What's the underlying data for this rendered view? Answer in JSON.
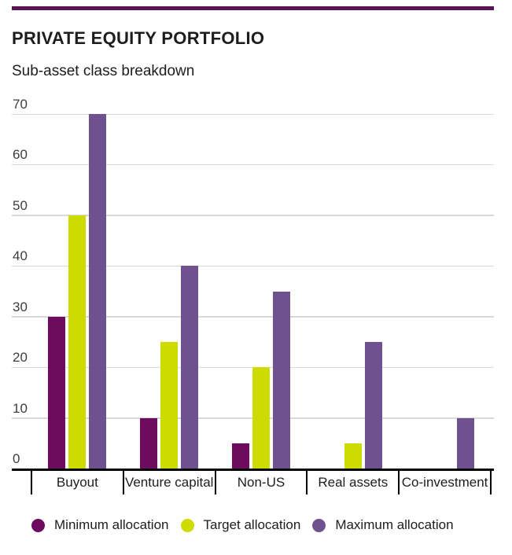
{
  "header": {
    "title": "PRIVATE EQUITY PORTFOLIO",
    "subtitle": "Sub-asset class breakdown"
  },
  "colors": {
    "top_rule": "#5c1257",
    "minimum": "#6e0b5e",
    "target": "#cedb00",
    "maximum": "#6f5190",
    "gridline": "#d9d9d9",
    "axis": "#000000"
  },
  "chart_data": {
    "type": "bar",
    "title": "PRIVATE EQUITY PORTFOLIO",
    "subtitle": "Sub-asset class breakdown",
    "categories": [
      "Buyout",
      "Venture capital",
      "Non-US",
      "Real assets",
      "Co-investment"
    ],
    "series": [
      {
        "name": "Minimum allocation",
        "color": "#6e0b5e",
        "values": [
          30,
          10,
          5,
          0,
          0
        ]
      },
      {
        "name": "Target allocation",
        "color": "#cedb00",
        "values": [
          50,
          25,
          20,
          5,
          0
        ]
      },
      {
        "name": "Maximum allocation",
        "color": "#6f5190",
        "values": [
          70,
          40,
          35,
          25,
          10
        ]
      }
    ],
    "xlabel": "",
    "ylabel": "",
    "ylim": [
      0,
      70
    ],
    "yticks": [
      0,
      10,
      20,
      30,
      40,
      50,
      60,
      70
    ],
    "grid": "horizontal",
    "legend_position": "bottom"
  }
}
